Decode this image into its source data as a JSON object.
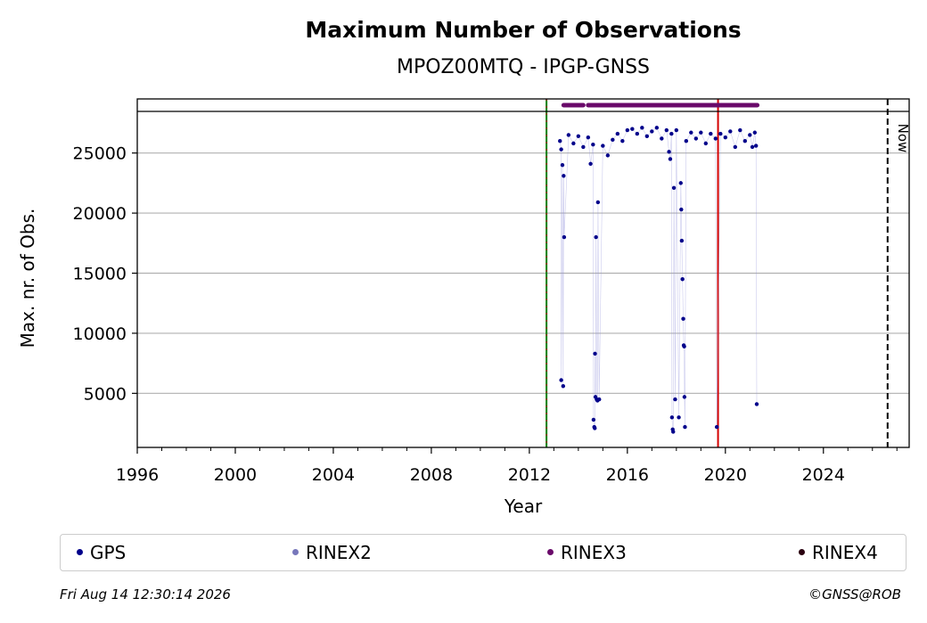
{
  "chart_data": {
    "type": "scatter",
    "title": "Maximum Number of Observations",
    "subtitle": "MPOZ00MTQ - IPGP-GNSS",
    "xlabel": "Year",
    "ylabel": "Max. nr. of Obs.",
    "xlim": [
      1996,
      2027.5
    ],
    "ylim": [
      500,
      29500
    ],
    "x_ticks": [
      1996,
      2000,
      2004,
      2008,
      2012,
      2016,
      2020,
      2024
    ],
    "y_ticks": [
      5000,
      10000,
      15000,
      20000,
      25000
    ],
    "grid": "y",
    "vlines": [
      {
        "x": 2012.7,
        "color": "#008000",
        "style": "solid"
      },
      {
        "x": 2019.7,
        "color": "#d40000",
        "style": "solid"
      },
      {
        "x": 2026.62,
        "color": "#000000",
        "style": "dashed",
        "label": "Now"
      }
    ],
    "series": [
      {
        "name": "GPS",
        "color": "#00008b",
        "points": [
          [
            2013.25,
            26000
          ],
          [
            2013.3,
            25300
          ],
          [
            2013.35,
            24000
          ],
          [
            2013.4,
            23100
          ],
          [
            2013.42,
            18000
          ],
          [
            2013.3,
            6100
          ],
          [
            2013.38,
            5600
          ],
          [
            2013.6,
            26500
          ],
          [
            2013.8,
            25800
          ],
          [
            2014.0,
            26400
          ],
          [
            2014.2,
            25500
          ],
          [
            2014.4,
            26300
          ],
          [
            2014.5,
            24100
          ],
          [
            2014.6,
            25700
          ],
          [
            2014.62,
            2800
          ],
          [
            2014.65,
            2200
          ],
          [
            2014.67,
            2100
          ],
          [
            2014.68,
            8300
          ],
          [
            2014.7,
            4700
          ],
          [
            2014.72,
            18000
          ],
          [
            2014.75,
            4500
          ],
          [
            2014.78,
            4400
          ],
          [
            2014.8,
            20900
          ],
          [
            2014.85,
            4500
          ],
          [
            2015.0,
            25600
          ],
          [
            2015.2,
            24800
          ],
          [
            2015.4,
            26100
          ],
          [
            2015.6,
            26600
          ],
          [
            2015.8,
            26000
          ],
          [
            2016.0,
            26900
          ],
          [
            2016.2,
            27000
          ],
          [
            2016.4,
            26600
          ],
          [
            2016.6,
            27100
          ],
          [
            2016.8,
            26400
          ],
          [
            2017.0,
            26800
          ],
          [
            2017.2,
            27100
          ],
          [
            2017.4,
            26200
          ],
          [
            2017.6,
            26900
          ],
          [
            2017.7,
            25100
          ],
          [
            2017.75,
            24500
          ],
          [
            2017.8,
            26600
          ],
          [
            2017.82,
            3000
          ],
          [
            2017.85,
            2000
          ],
          [
            2017.87,
            1800
          ],
          [
            2017.9,
            22100
          ],
          [
            2017.95,
            4500
          ],
          [
            2018.0,
            26900
          ],
          [
            2018.1,
            3000
          ],
          [
            2018.18,
            22500
          ],
          [
            2018.2,
            20300
          ],
          [
            2018.22,
            17700
          ],
          [
            2018.25,
            14500
          ],
          [
            2018.28,
            11200
          ],
          [
            2018.3,
            9000
          ],
          [
            2018.32,
            8900
          ],
          [
            2018.33,
            4700
          ],
          [
            2018.35,
            2200
          ],
          [
            2018.4,
            26000
          ],
          [
            2018.6,
            26700
          ],
          [
            2018.8,
            26200
          ],
          [
            2019.0,
            26700
          ],
          [
            2019.2,
            25800
          ],
          [
            2019.4,
            26600
          ],
          [
            2019.6,
            26200
          ],
          [
            2019.65,
            2200
          ],
          [
            2019.8,
            26600
          ],
          [
            2020.0,
            26300
          ],
          [
            2020.2,
            26800
          ],
          [
            2020.4,
            25500
          ],
          [
            2020.6,
            26900
          ],
          [
            2020.8,
            26000
          ],
          [
            2021.0,
            26500
          ],
          [
            2021.1,
            25500
          ],
          [
            2021.2,
            26700
          ],
          [
            2021.25,
            25600
          ],
          [
            2021.28,
            4100
          ]
        ]
      },
      {
        "name": "RINEX2",
        "color": "#7777bb",
        "points": []
      },
      {
        "name": "RINEX3",
        "color": "#6a0a6a",
        "ranges": [
          [
            2013.4,
            2014.2
          ],
          [
            2014.4,
            2021.3
          ]
        ],
        "y": 29100
      },
      {
        "name": "RINEX4",
        "color": "#2a0010",
        "points": []
      }
    ]
  },
  "footer": {
    "date": "Fri Aug 14 12:30:14 2026",
    "credit": "©GNSS@ROB"
  }
}
